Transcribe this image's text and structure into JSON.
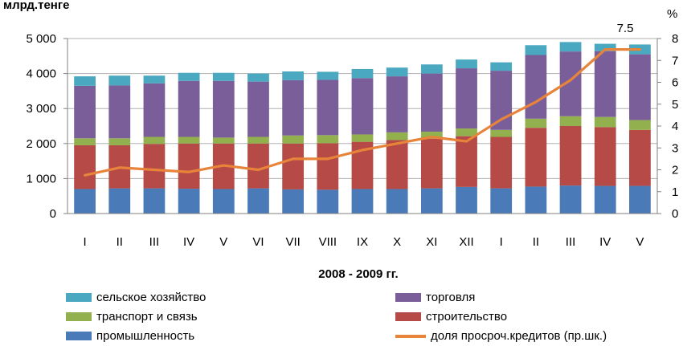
{
  "chart_data": {
    "type": "bar",
    "stacked": true,
    "xlabel": "2008 - 2009 гг.",
    "ylabel": "млрд.тенге",
    "y2label": "%",
    "categories": [
      "I",
      "II",
      "III",
      "IV",
      "V",
      "VI",
      "VII",
      "VIII",
      "IX",
      "X",
      "XI",
      "XII",
      "I",
      "II",
      "III",
      "IV",
      "V"
    ],
    "ylim": [
      0,
      5000
    ],
    "yticks": [
      "0",
      "1 000",
      "2 000",
      "3 000",
      "4 000",
      "5 000"
    ],
    "y2lim": [
      0,
      8
    ],
    "y2ticks": [
      "0",
      "1",
      "2",
      "3",
      "4",
      "5",
      "6",
      "7",
      "8"
    ],
    "series": [
      {
        "name": "промышленность",
        "color": "#4a7ab8",
        "values": [
          700,
          720,
          720,
          710,
          700,
          720,
          690,
          680,
          700,
          700,
          720,
          760,
          720,
          770,
          800,
          790,
          790
        ]
      },
      {
        "name": "строительство",
        "color": "#b54a47",
        "values": [
          1250,
          1230,
          1270,
          1290,
          1300,
          1280,
          1310,
          1330,
          1350,
          1400,
          1420,
          1450,
          1470,
          1680,
          1700,
          1680,
          1600
        ]
      },
      {
        "name": "транспорт и связь",
        "color": "#92b14e",
        "values": [
          200,
          200,
          200,
          190,
          170,
          190,
          230,
          230,
          210,
          220,
          200,
          220,
          200,
          260,
          280,
          290,
          280
        ]
      },
      {
        "name": "торговля",
        "color": "#7a5e99",
        "values": [
          1500,
          1510,
          1530,
          1600,
          1620,
          1580,
          1580,
          1580,
          1610,
          1600,
          1660,
          1720,
          1690,
          1820,
          1850,
          1880,
          1880
        ]
      },
      {
        "name": "сельское хозяйство",
        "color": "#4aa8c0",
        "values": [
          270,
          280,
          220,
          230,
          230,
          230,
          250,
          230,
          260,
          250,
          260,
          250,
          240,
          280,
          270,
          210,
          280
        ]
      }
    ],
    "line": {
      "name": "доля просроч.кредитов (пр.шк.)",
      "color": "#e8843a",
      "axis": "right",
      "values": [
        1.75,
        2.1,
        2.0,
        1.9,
        2.2,
        2.0,
        2.5,
        2.5,
        2.9,
        3.2,
        3.5,
        3.3,
        4.3,
        5.1,
        6.1,
        7.5,
        7.5
      ]
    },
    "annotation": "7.5",
    "legend_position": "bottom"
  },
  "legend": [
    {
      "label": "сельское хозяйство",
      "color": "#4aa8c0",
      "kind": "bar"
    },
    {
      "label": "торговля",
      "color": "#7a5e99",
      "kind": "bar"
    },
    {
      "label": "транспорт и связь",
      "color": "#92b14e",
      "kind": "bar"
    },
    {
      "label": "строительство",
      "color": "#b54a47",
      "kind": "bar"
    },
    {
      "label": "промышленность",
      "color": "#4a7ab8",
      "kind": "bar"
    },
    {
      "label": "доля просроч.кредитов (пр.шк.)",
      "color": "#e8843a",
      "kind": "line"
    }
  ]
}
